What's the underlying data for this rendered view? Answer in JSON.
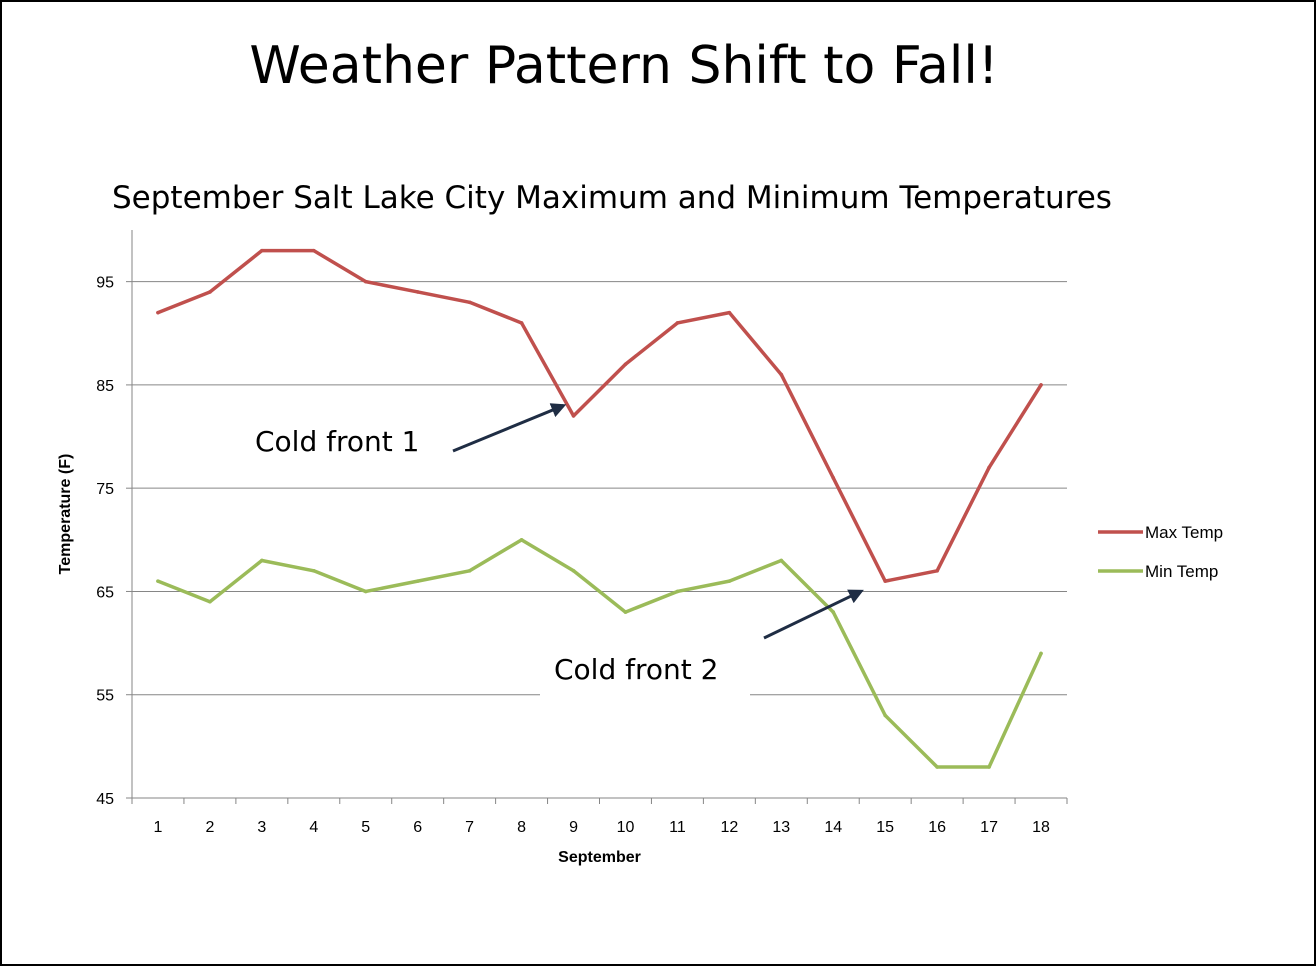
{
  "slide": {
    "title": "Weather Pattern Shift to Fall!"
  },
  "chart_data": {
    "type": "line",
    "title": "September Salt Lake City Maximum and Minimum Temperatures",
    "xlabel": "September",
    "ylabel": "Temperature (F)",
    "x": [
      1,
      2,
      3,
      4,
      5,
      6,
      7,
      8,
      9,
      10,
      11,
      12,
      13,
      14,
      15,
      16,
      17,
      18
    ],
    "x_tick_labels": [
      "1",
      "2",
      "3",
      "4",
      "5",
      "6",
      "7",
      "8",
      "9",
      "10",
      "11",
      "12",
      "13",
      "14",
      "15",
      "16",
      "17",
      "18"
    ],
    "ylim": [
      45,
      100
    ],
    "y_ticks": [
      45,
      55,
      65,
      75,
      85,
      95
    ],
    "y_tick_labels": [
      "45",
      "55",
      "65",
      "75",
      "85",
      "95"
    ],
    "grid": "horizontal",
    "legend_position": "right",
    "series": [
      {
        "name": "Max Temp",
        "color": "#c0504d",
        "values": [
          92,
          94,
          98,
          98,
          95,
          94,
          93,
          91,
          82,
          87,
          91,
          92,
          86,
          76,
          66,
          67,
          77,
          85
        ]
      },
      {
        "name": "Min Temp",
        "color": "#9bbb59",
        "values": [
          66,
          64,
          68,
          67,
          65,
          66,
          67,
          70,
          67,
          63,
          65,
          66,
          68,
          63,
          53,
          48,
          48,
          59
        ]
      }
    ],
    "annotations": [
      {
        "text": "Cold front 1",
        "points_to": {
          "x": 9,
          "y": 82
        },
        "arrow_color": "#1f2d44"
      },
      {
        "text": "Cold front 2",
        "points_to": {
          "x": 15,
          "y": 66
        },
        "arrow_color": "#1f2d44"
      }
    ]
  }
}
